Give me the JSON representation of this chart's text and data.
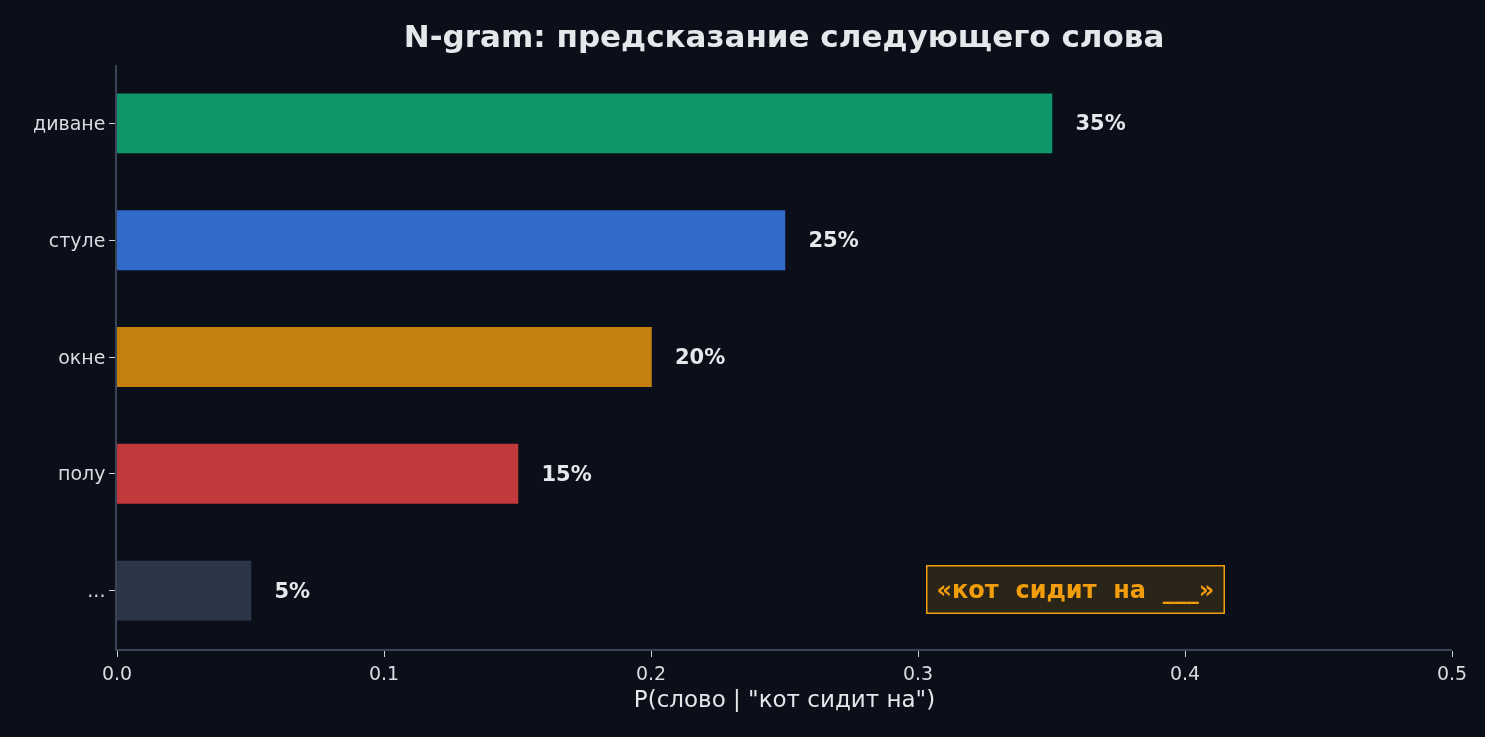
{
  "chart_data": {
    "type": "bar",
    "orientation": "horizontal",
    "title": "N-gram: предсказание следующего слова",
    "xlabel": "P(слово | \"кот сидит на\")",
    "categories": [
      "диване",
      "стуле",
      "окне",
      "полу",
      "..."
    ],
    "values": [
      0.35,
      0.25,
      0.2,
      0.15,
      0.05
    ],
    "colors": [
      "#10966b",
      "#316ac9",
      "#c4800f",
      "#c0393b",
      "#2b3648"
    ],
    "value_labels": [
      "35%",
      "25%",
      "20%",
      "15%",
      "5%"
    ],
    "xlim": [
      0,
      0.5
    ],
    "xticks": [
      {
        "value": 0,
        "label": "0.0"
      },
      0.1,
      0.2,
      0.3,
      0.4,
      0.5
    ],
    "grid": false,
    "annotations": [
      "«кот  сидит  на  ___»"
    ]
  }
}
